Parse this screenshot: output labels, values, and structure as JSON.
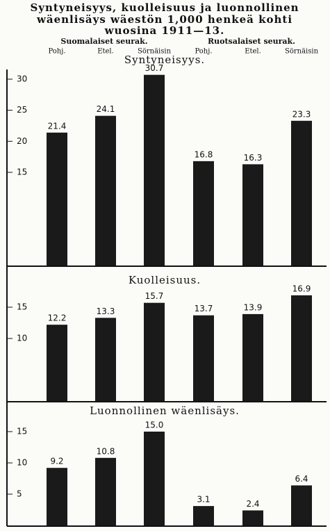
{
  "title": [
    "Syntyneisyys, kuolleisuus ja luonnollinen",
    "wäenlisäys wäestön 1,000 henkeä kohti",
    "wuosina 1911—13."
  ],
  "chart_data": [
    {
      "type": "bar",
      "title": "Syntyneisyys.",
      "groups": [
        "Suomalaiset seurak.",
        "Ruotsalaiset seurak."
      ],
      "categories": [
        "Pohj.",
        "Etel.",
        "Sörnäisin",
        "Pohj.",
        "Etel.",
        "Sörnäisin"
      ],
      "values": [
        21.4,
        24.1,
        30.7,
        16.8,
        16.3,
        23.3
      ],
      "color": "#1a1a1a",
      "ylim": [
        0,
        31
      ],
      "yticks": [
        15,
        20,
        25,
        30
      ]
    },
    {
      "type": "bar",
      "title": "Kuolleisuus.",
      "values": [
        12.2,
        13.3,
        15.7,
        13.7,
        13.9,
        16.9
      ],
      "color": "#1a1a1a",
      "ylim": [
        0,
        21
      ],
      "yticks": [
        10,
        15
      ]
    },
    {
      "type": "bar",
      "title": "Luonnollinen wäenlisäys.",
      "values": [
        9.2,
        10.8,
        15.0,
        3.1,
        2.4,
        6.4
      ],
      "value_labels": [
        "9.2",
        "10.8",
        "15.0",
        "3.1",
        "2.4",
        "6.4"
      ],
      "color": "#1a1a1a",
      "ylim": [
        0,
        19
      ],
      "yticks": [
        5,
        10,
        15
      ]
    }
  ]
}
